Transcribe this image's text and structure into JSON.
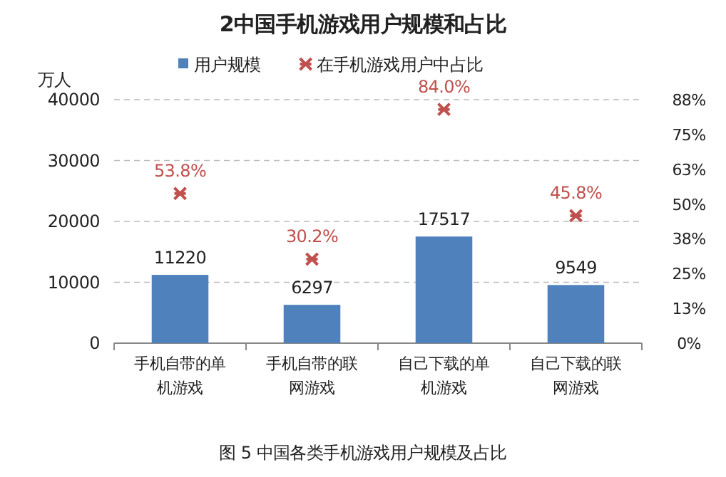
{
  "chart_data": {
    "type": "bar",
    "title": "2中国手机游戏用户规模和占比",
    "ylabel": "万人",
    "annotations": [
      "图 5 中国各类手机游戏用户规模及占比"
    ],
    "categories": [
      "手机自带的单机游戏",
      "手机自带的联网游戏",
      "自己下载的单机游戏",
      "自己下载的联网游戏"
    ],
    "series": [
      {
        "name": "用户规模",
        "color": "#4f81bd",
        "values": [
          11220,
          6297,
          17517,
          9549
        ],
        "value_labels": [
          "11220",
          "6297",
          "17517",
          "9549"
        ]
      },
      {
        "name": "在手机游戏用户中占比",
        "type": "scatter",
        "axis": "y2",
        "marker": "cross",
        "color": "#c0504d",
        "values": [
          53.8,
          30.2,
          84.0,
          45.8
        ],
        "value_labels": [
          "53.8%",
          "30.2%",
          "84.0%",
          "45.8%"
        ]
      }
    ],
    "ylim": [
      0,
      40000
    ],
    "yticks": [
      0,
      10000,
      20000,
      30000,
      40000
    ],
    "y2lim": [
      0,
      87.5
    ],
    "y2ticks": [
      {
        "value": 0,
        "label": "0%"
      },
      {
        "value": 12.5,
        "label": "13%"
      },
      {
        "value": 25,
        "label": "25%"
      },
      {
        "value": 37.5,
        "label": "38%"
      },
      {
        "value": 50,
        "label": "50%"
      },
      {
        "value": 62.5,
        "label": "63%"
      },
      {
        "value": 75,
        "label": "75%"
      },
      {
        "value": 87.5,
        "label": "88%"
      }
    ],
    "grid": "y",
    "legend": "top"
  }
}
